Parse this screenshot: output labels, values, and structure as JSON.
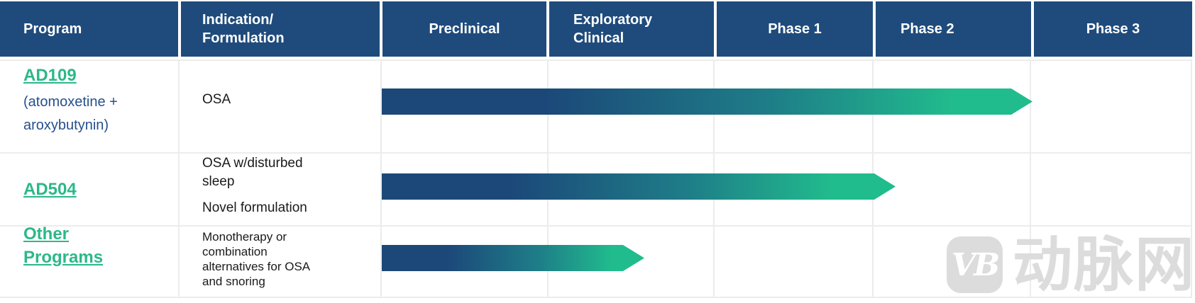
{
  "table": {
    "columns": [
      {
        "label": "Program"
      },
      {
        "label": "Indication/\nFormulation"
      },
      {
        "label": "Preclinical"
      },
      {
        "label": "Exploratory\nClinical"
      },
      {
        "label": "Phase 1"
      },
      {
        "label": "Phase 2"
      },
      {
        "label": "Phase 3"
      }
    ],
    "rows": [
      {
        "program": "AD109",
        "program_sub": "(atomoxetine +\naroxybutynin)",
        "indication": "OSA",
        "progress": {
          "from": "Preclinical",
          "to": "end of Phase 2"
        }
      },
      {
        "program": "AD504",
        "indication": "OSA w/disturbed sleep",
        "indication2": "Novel formulation",
        "progress": {
          "from": "Preclinical",
          "to": "start of Phase 2"
        }
      },
      {
        "program": "Other Programs",
        "indication": "Monotherapy or combination alternatives for OSA and snoring",
        "progress": {
          "from": "Preclinical",
          "to": "middle of Exploratory Clinical"
        }
      }
    ]
  },
  "colors": {
    "header_bg": "#1F4B7C",
    "arrow_gradient_start": "#1C4879",
    "arrow_gradient_end": "#21BC8D",
    "program_link_green": "#2CB889",
    "program_sub_blue": "#27508C",
    "body_text": "#1A1A1A",
    "grid_line": "#ECECEC",
    "watermark_gray": "#DCDCDC"
  },
  "watermark": {
    "logo_text": "VB",
    "text": "动脉网"
  }
}
